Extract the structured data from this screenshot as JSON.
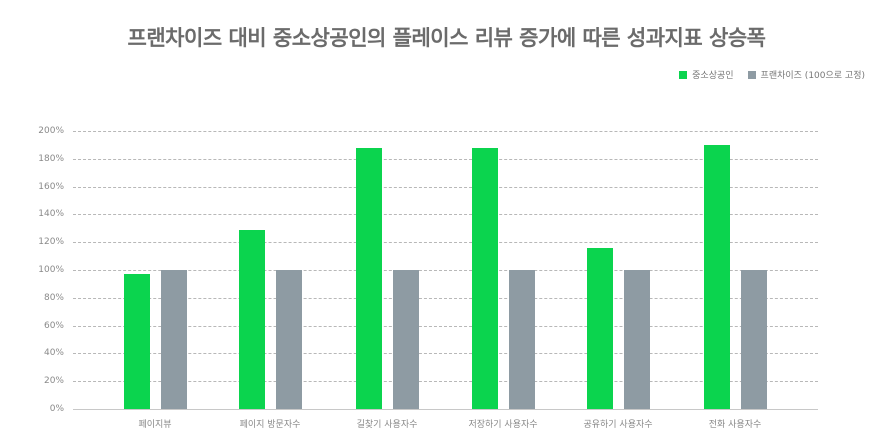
{
  "title": "프랜차이즈 대비 중소상공인의 플레이스 리뷰 증가에 따른 성과지표 상승폭",
  "legend": [
    {
      "label": "중소상공인",
      "color": "#0bd44e"
    },
    {
      "label": "프랜차이즈 (100으로 고정)",
      "color": "#8e9ba3"
    }
  ],
  "yticks": [
    "200%",
    "180%",
    "160%",
    "140%",
    "120%",
    "100%",
    "80%",
    "60%",
    "40%",
    "20%",
    "0%"
  ],
  "xlabels": [
    "페이지뷰",
    "페이지 방문자수",
    "길찾기 사용자수",
    "저장하기 사용자수",
    "공유하기 사용자수",
    "전화 사용자수"
  ],
  "chart_data": {
    "type": "bar",
    "title": "프랜차이즈 대비 중소상공인의 플레이스 리뷰 증가에 따른 성과지표 상승폭",
    "categories": [
      "페이지뷰",
      "페이지 방문자수",
      "길찾기 사용자수",
      "저장하기 사용자수",
      "공유하기 사용자수",
      "전화 사용자수"
    ],
    "series": [
      {
        "name": "중소상공인",
        "color": "#0bd44e",
        "values": [
          97,
          129,
          188,
          188,
          116,
          190
        ]
      },
      {
        "name": "프랜차이즈 (100으로 고정)",
        "color": "#8e9ba3",
        "values": [
          100,
          100,
          100,
          100,
          100,
          100
        ]
      }
    ],
    "xlabel": "",
    "ylabel": "",
    "ylim": [
      0,
      200
    ],
    "ytick_format": "percent",
    "grid": true,
    "legend_position": "top-right"
  }
}
